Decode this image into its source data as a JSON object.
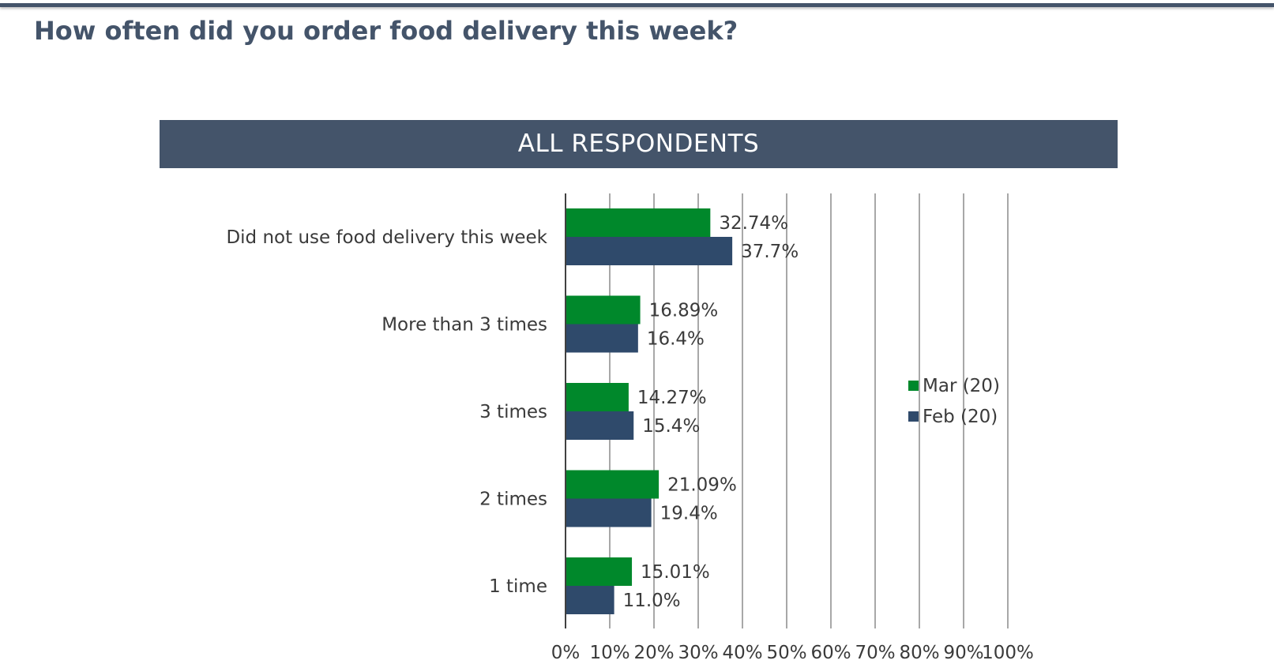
{
  "title": "How often did you order food delivery this week?",
  "banner": "ALL RESPONDENTS",
  "colors": {
    "title": "#44546a",
    "banner_bg": "#44546a",
    "series_mar": "#00882b",
    "series_feb": "#2f4a6b",
    "gridline": "#8c8c8c"
  },
  "chart_data": {
    "type": "bar",
    "orientation": "horizontal",
    "categories": [
      "Did not use food delivery this week",
      "More than 3 times",
      "3 times",
      "2 times",
      "1 time"
    ],
    "series": [
      {
        "name": "Mar (20)",
        "values": [
          32.74,
          16.89,
          14.27,
          21.09,
          15.01
        ],
        "labels": [
          "32.74%",
          "16.89%",
          "14.27%",
          "21.09%",
          "15.01%"
        ]
      },
      {
        "name": "Feb (20)",
        "values": [
          37.7,
          16.4,
          15.4,
          19.4,
          11.0
        ],
        "labels": [
          "37.7%",
          "16.4%",
          "15.4%",
          "19.4%",
          "11.0%"
        ]
      }
    ],
    "xlim": [
      0,
      100
    ],
    "xticks": [
      "0%",
      "10%",
      "20%",
      "30%",
      "40%",
      "50%",
      "60%",
      "70%",
      "80%",
      "90%",
      "100%"
    ],
    "grid": true,
    "legend_position": "right"
  }
}
